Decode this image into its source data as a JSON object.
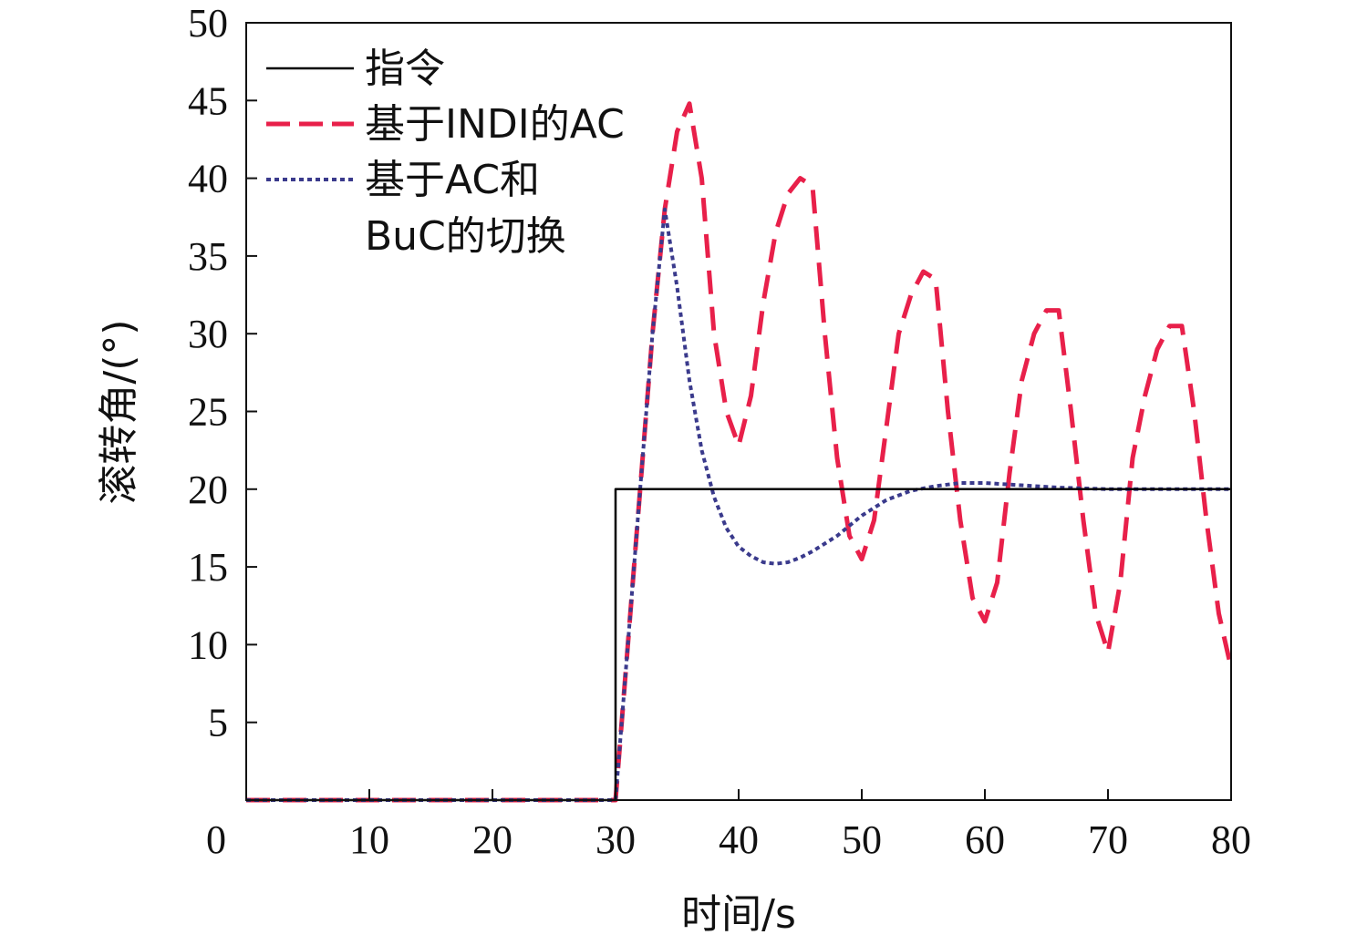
{
  "chart_data": {
    "type": "line",
    "title": "",
    "xlabel": "时间/s",
    "ylabel": "滚转角/(°)",
    "xlim": [
      0,
      80
    ],
    "ylim": [
      0,
      50
    ],
    "x_ticks": [
      0,
      10,
      20,
      30,
      40,
      50,
      60,
      70,
      80
    ],
    "y_ticks": [
      5,
      10,
      15,
      20,
      25,
      30,
      35,
      40,
      45,
      50
    ],
    "grid": false,
    "legend_position": "top-left",
    "series": [
      {
        "name": "指令",
        "style": "solid",
        "color": "#000000",
        "x": [
          0,
          30,
          30,
          80
        ],
        "y": [
          0,
          0,
          20,
          20
        ]
      },
      {
        "name": "基于INDI的AC",
        "style": "dashed",
        "color": "#e8204a",
        "x": [
          0,
          30,
          31,
          32,
          33,
          34,
          35,
          36,
          37,
          38,
          39,
          40,
          41,
          42,
          43,
          44,
          45,
          46,
          47,
          48,
          49,
          50,
          51,
          52,
          53,
          54,
          55,
          56,
          57,
          58,
          59,
          60,
          61,
          62,
          63,
          64,
          65,
          66,
          67,
          68,
          69,
          70,
          71,
          72,
          73,
          74,
          75,
          76,
          77,
          78,
          79,
          80
        ],
        "y": [
          0,
          0,
          10,
          20,
          30,
          38,
          43,
          44.8,
          40,
          30,
          25,
          22.8,
          26,
          32,
          36.5,
          39,
          40,
          39.5,
          30,
          22,
          17,
          15.5,
          18,
          24,
          30,
          32.5,
          34,
          33.5,
          25,
          18,
          13,
          11.5,
          14,
          21,
          27,
          30,
          31.5,
          31.5,
          25,
          18,
          12,
          9.5,
          14,
          22,
          26,
          29,
          30.5,
          30.5,
          25,
          18,
          12,
          8.5
        ]
      },
      {
        "name": "基于AC和BuC的切换",
        "style": "dotted",
        "color": "#3a3a8c",
        "x": [
          0,
          30,
          31,
          32,
          33,
          34,
          35,
          36,
          37,
          38,
          39,
          40,
          41,
          42,
          43,
          44,
          45,
          46,
          48,
          50,
          52,
          54,
          56,
          58,
          60,
          62,
          64,
          66,
          68,
          70,
          72,
          74,
          76,
          78,
          80
        ],
        "y": [
          0,
          0,
          10,
          20,
          30,
          38,
          33,
          27,
          22.5,
          19.5,
          17.5,
          16.3,
          15.7,
          15.3,
          15.2,
          15.3,
          15.6,
          16,
          17,
          18.3,
          19.3,
          19.9,
          20.2,
          20.4,
          20.4,
          20.3,
          20.2,
          20.1,
          20.05,
          20,
          20,
          20,
          20,
          20,
          20
        ]
      }
    ]
  }
}
